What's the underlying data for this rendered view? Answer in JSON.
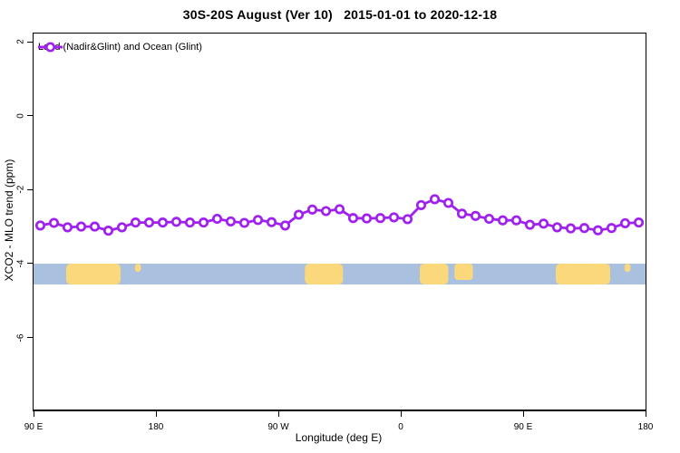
{
  "title": "30S-20S August (Ver 10)   2015-01-01 to 2020-12-18",
  "legend": {
    "label": "Land (Nadir&Glint) and Ocean (Glint)"
  },
  "axes": {
    "x": {
      "label": "Longitude (deg E)"
    },
    "y": {
      "label": "XCO2 - MLO trend (ppm)"
    }
  },
  "colors": {
    "line": "#A020F0",
    "marker_fill": "#FFFFFF",
    "ocean": "#A9C0DE",
    "land": "#FCD87D",
    "axis": "#000000",
    "background": "#FFFFFF"
  },
  "chart_data": {
    "type": "line",
    "title": "30S-20S August (Ver 10)   2015-01-01 to 2020-12-18",
    "xlabel": "Longitude (deg E)",
    "ylabel": "XCO2 - MLO trend (ppm)",
    "xlim_deg_east_wrapped": [
      90,
      540
    ],
    "ylim": [
      -7.95,
      2.22
    ],
    "grid": false,
    "legend_position": "top-left",
    "x_deg_east": [
      95,
      105,
      115,
      125,
      135,
      145,
      155,
      165,
      175,
      185,
      195,
      205,
      215,
      225,
      235,
      245,
      255,
      265,
      275,
      285,
      295,
      305,
      315,
      325,
      335,
      345,
      355,
      365,
      375,
      385,
      395,
      405,
      415,
      425,
      435,
      445,
      455,
      465,
      475,
      485,
      495,
      505,
      515,
      525,
      535
    ],
    "series": [
      {
        "name": "Land (Nadir&Glint) and Ocean (Glint)",
        "marker": "open-circle",
        "values": [
          -2.97,
          -2.9,
          -3.02,
          -3.0,
          -3.0,
          -3.11,
          -3.02,
          -2.89,
          -2.89,
          -2.89,
          -2.87,
          -2.89,
          -2.89,
          -2.79,
          -2.86,
          -2.9,
          -2.82,
          -2.88,
          -2.97,
          -2.68,
          -2.54,
          -2.58,
          -2.53,
          -2.77,
          -2.78,
          -2.77,
          -2.75,
          -2.8,
          -2.42,
          -2.26,
          -2.36,
          -2.65,
          -2.71,
          -2.79,
          -2.83,
          -2.83,
          -2.95,
          -2.92,
          -3.02,
          -3.05,
          -3.04,
          -3.1,
          -3.04,
          -2.91,
          -2.89
        ]
      }
    ],
    "x_axis_ticks": [
      {
        "label": "90 E",
        "deg": 90
      },
      {
        "label": "180",
        "deg": 180
      },
      {
        "label": "90 W",
        "deg": 270
      },
      {
        "label": "0",
        "deg": 360
      },
      {
        "label": "90 E",
        "deg": 450
      },
      {
        "label": "180",
        "deg": 540
      }
    ],
    "y_axis_ticks": [
      {
        "label": "2",
        "value": 2
      },
      {
        "label": "0",
        "value": 0
      },
      {
        "label": "-2",
        "value": -2
      },
      {
        "label": "-4",
        "value": -4
      },
      {
        "label": "-6",
        "value": -6
      }
    ],
    "map_strip": {
      "description": "ocean-land strip for the 30S-20S latitude band",
      "value_range_ppm": [
        -4.56,
        -4.0
      ],
      "land_patches": [
        {
          "name": "australia",
          "deg": [
            114.0,
            154.0
          ],
          "height_frac": 1
        },
        {
          "name": "new-caledonia",
          "deg": [
            164.5,
            169.0
          ],
          "height_frac": 0.4
        },
        {
          "name": "south-america",
          "deg": [
            289.5,
            317.5
          ],
          "height_frac": 1
        },
        {
          "name": "southern-africa",
          "deg": [
            374.0,
            395.0
          ],
          "height_frac": 1
        },
        {
          "name": "madagascar",
          "deg": [
            399.5,
            413.0
          ],
          "height_frac": 0.78
        },
        {
          "name": "australia-wrap",
          "deg": [
            474.0,
            514.0
          ],
          "height_frac": 1
        },
        {
          "name": "new-caledonia-wrap",
          "deg": [
            524.5,
            529.0
          ],
          "height_frac": 0.4
        }
      ]
    }
  }
}
